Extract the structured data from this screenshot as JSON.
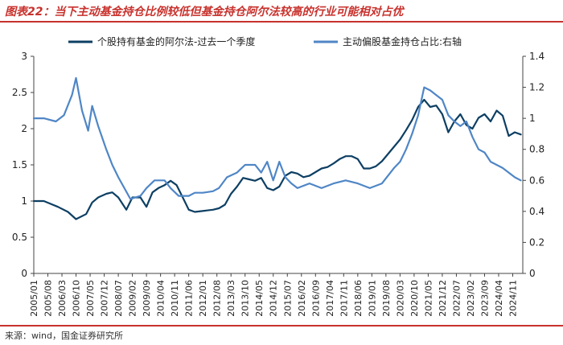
{
  "title": "图表22：当下主动基金持仓比例较低但基金持仓阿尔法较高的行业可能相对占优",
  "source": "来源：wind，国金证券研究所",
  "colors": {
    "accent": "#c8322d",
    "series_dark": "#0d3f63",
    "series_light": "#4f86c6"
  },
  "chart_data": {
    "type": "line",
    "title": "",
    "xlabel": "",
    "ylabel": "",
    "legend_position": "top",
    "grid": false,
    "y_left": {
      "range": [
        0,
        3
      ],
      "ticks": [
        "0",
        "0.5",
        "1",
        "1.5",
        "2",
        "2.5",
        "3"
      ]
    },
    "y_right": {
      "range": [
        0,
        1.4
      ],
      "ticks": [
        "0",
        "0.2",
        "0.4",
        "0.6",
        "0.8",
        "1",
        "1.2",
        "1.4"
      ]
    },
    "x_range": [
      "2005-01",
      "2025-04"
    ],
    "x_tick_labels": [
      "2005/01",
      "2005/08",
      "2006/03",
      "2006/10",
      "2007/05",
      "2007/12",
      "2008/07",
      "2009/02",
      "2009/09",
      "2010/04",
      "2010/11",
      "2011/06",
      "2012/01",
      "2012/08",
      "2013/03",
      "2013/10",
      "2014/05",
      "2014/12",
      "2015/07",
      "2016/02",
      "2016/09",
      "2017/04",
      "2017/11",
      "2018/06",
      "2019/01",
      "2019/08",
      "2020/03",
      "2020/10",
      "2021/05",
      "2021/12",
      "2022/07",
      "2023/02",
      "2023/09",
      "2024/04",
      "2024/11"
    ],
    "series": [
      {
        "name": "个股持有基金的阿尔法-过去一个季度",
        "axis": "left",
        "color": "#0d3f63",
        "x": [
          "2005-01",
          "2005-06",
          "2006-01",
          "2006-06",
          "2006-10",
          "2007-03",
          "2007-06",
          "2007-09",
          "2008-01",
          "2008-04",
          "2008-07",
          "2008-11",
          "2009-02",
          "2009-06",
          "2009-09",
          "2009-12",
          "2010-03",
          "2010-06",
          "2010-09",
          "2010-12",
          "2011-03",
          "2011-06",
          "2011-09",
          "2011-12",
          "2012-03",
          "2012-06",
          "2012-09",
          "2012-12",
          "2013-03",
          "2013-06",
          "2013-09",
          "2013-12",
          "2014-03",
          "2014-06",
          "2014-09",
          "2014-12",
          "2015-03",
          "2015-06",
          "2015-09",
          "2015-12",
          "2016-03",
          "2016-06",
          "2016-09",
          "2016-12",
          "2017-03",
          "2017-06",
          "2017-09",
          "2017-12",
          "2018-03",
          "2018-06",
          "2018-09",
          "2018-12",
          "2019-03",
          "2019-06",
          "2019-09",
          "2019-12",
          "2020-03",
          "2020-06",
          "2020-09",
          "2020-12",
          "2021-03",
          "2021-06",
          "2021-09",
          "2021-12",
          "2022-03",
          "2022-06",
          "2022-09",
          "2022-12",
          "2023-03",
          "2023-06",
          "2023-09",
          "2023-12",
          "2024-03",
          "2024-06",
          "2024-09",
          "2024-12",
          "2025-03"
        ],
        "y": [
          1.0,
          1.0,
          0.92,
          0.85,
          0.75,
          0.82,
          0.98,
          1.05,
          1.1,
          1.12,
          1.05,
          0.88,
          1.05,
          1.05,
          0.92,
          1.12,
          1.18,
          1.22,
          1.28,
          1.22,
          1.05,
          0.88,
          0.85,
          0.86,
          0.87,
          0.88,
          0.9,
          0.95,
          1.1,
          1.2,
          1.32,
          1.3,
          1.28,
          1.32,
          1.18,
          1.15,
          1.2,
          1.35,
          1.4,
          1.38,
          1.33,
          1.35,
          1.4,
          1.45,
          1.47,
          1.52,
          1.58,
          1.62,
          1.62,
          1.58,
          1.45,
          1.45,
          1.48,
          1.55,
          1.65,
          1.75,
          1.85,
          1.98,
          2.12,
          2.3,
          2.4,
          2.3,
          2.32,
          2.2,
          1.95,
          2.1,
          2.2,
          2.05,
          2.0,
          2.15,
          2.2,
          2.1,
          2.25,
          2.18,
          1.9,
          1.95,
          1.92
        ]
      },
      {
        "name": "主动偏股基金持仓占比:右轴",
        "axis": "right",
        "color": "#4f86c6",
        "x": [
          "2005-01",
          "2005-06",
          "2005-12",
          "2006-04",
          "2006-08",
          "2006-10",
          "2007-01",
          "2007-04",
          "2007-06",
          "2007-09",
          "2008-01",
          "2008-04",
          "2008-07",
          "2008-10",
          "2009-01",
          "2009-06",
          "2009-09",
          "2010-01",
          "2010-06",
          "2010-09",
          "2011-01",
          "2011-06",
          "2011-09",
          "2012-01",
          "2012-06",
          "2012-09",
          "2013-01",
          "2013-06",
          "2013-10",
          "2014-03",
          "2014-06",
          "2014-09",
          "2014-12",
          "2015-03",
          "2015-06",
          "2015-09",
          "2015-12",
          "2016-06",
          "2016-12",
          "2017-06",
          "2017-12",
          "2018-06",
          "2018-12",
          "2019-06",
          "2019-12",
          "2020-03",
          "2020-06",
          "2020-09",
          "2020-12",
          "2021-03",
          "2021-06",
          "2021-09",
          "2021-12",
          "2022-03",
          "2022-06",
          "2022-09",
          "2022-12",
          "2023-03",
          "2023-06",
          "2023-09",
          "2023-12",
          "2024-03",
          "2024-06",
          "2024-09",
          "2024-12",
          "2025-03"
        ],
        "y": [
          1.0,
          1.0,
          0.98,
          1.02,
          1.15,
          1.26,
          1.05,
          0.92,
          1.08,
          0.95,
          0.8,
          0.7,
          0.62,
          0.55,
          0.48,
          0.5,
          0.55,
          0.6,
          0.6,
          0.55,
          0.5,
          0.5,
          0.52,
          0.52,
          0.53,
          0.55,
          0.62,
          0.65,
          0.7,
          0.7,
          0.65,
          0.72,
          0.6,
          0.72,
          0.62,
          0.58,
          0.55,
          0.58,
          0.55,
          0.58,
          0.6,
          0.58,
          0.55,
          0.58,
          0.68,
          0.72,
          0.8,
          0.9,
          1.02,
          1.2,
          1.18,
          1.15,
          1.12,
          1.02,
          0.98,
          0.95,
          0.98,
          0.88,
          0.8,
          0.78,
          0.72,
          0.7,
          0.68,
          0.65,
          0.62,
          0.6
        ]
      }
    ]
  }
}
